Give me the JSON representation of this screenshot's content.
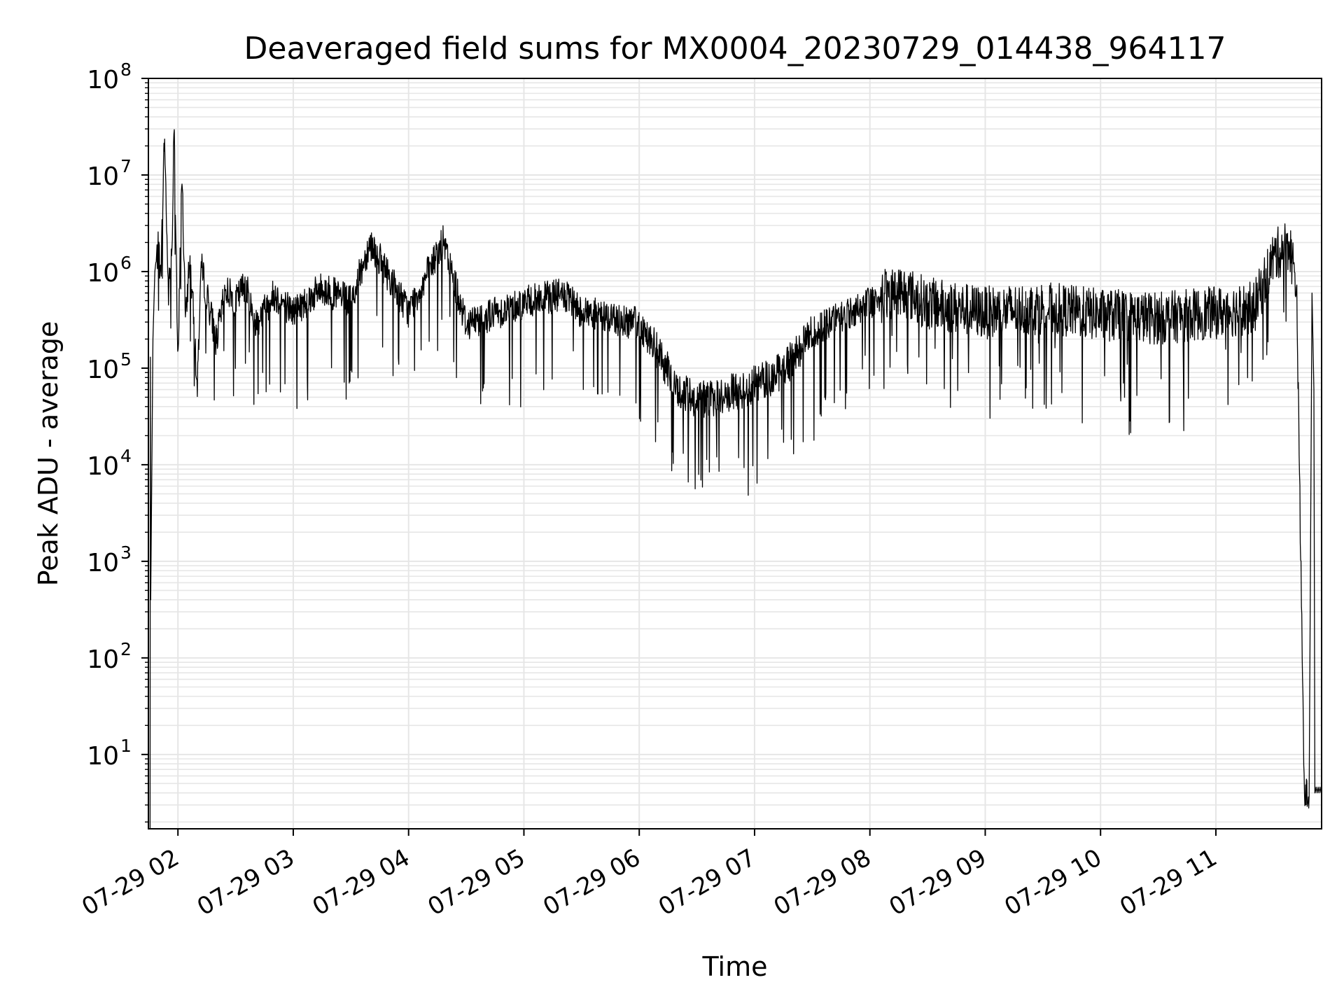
{
  "chart_data": {
    "type": "line",
    "title": "Deaveraged field sums for MX0004_20230729_014438_964117",
    "xlabel": "Time",
    "ylabel": "Peak ADU - average",
    "yscale": "log",
    "ylim": [
      1.7,
      100000000
    ],
    "xlim": [
      "2023-07-29 01:44:38",
      "2023-07-29 11:55:00"
    ],
    "x_tick_labels": [
      "07-29 02",
      "07-29 03",
      "07-29 04",
      "07-29 05",
      "07-29 06",
      "07-29 07",
      "07-29 08",
      "07-29 09",
      "07-29 10",
      "07-29 11"
    ],
    "x_tick_values": [
      "2023-07-29 02:00",
      "2023-07-29 03:00",
      "2023-07-29 04:00",
      "2023-07-29 05:00",
      "2023-07-29 06:00",
      "2023-07-29 07:00",
      "2023-07-29 08:00",
      "2023-07-29 09:00",
      "2023-07-29 10:00",
      "2023-07-29 11:00"
    ],
    "y_tick_values": [
      10,
      100,
      1000,
      10000,
      100000,
      1000000,
      10000000,
      100000000
    ],
    "y_tick_base": "10",
    "y_tick_exponents": [
      "1",
      "2",
      "3",
      "4",
      "5",
      "6",
      "7",
      "8"
    ],
    "grid": true,
    "line_color": "#000000",
    "grid_color": "#e6e6e6",
    "series": [
      {
        "x": [
          "2023-07-29 01:46",
          "2023-07-29 01:47",
          "2023-07-29 01:48",
          "2023-07-29 01:50",
          "2023-07-29 01:51",
          "2023-07-29 01:53",
          "2023-07-29 01:55",
          "2023-07-29 01:57",
          "2023-07-29 01:58",
          "2023-07-29 02:00",
          "2023-07-29 02:02",
          "2023-07-29 02:04",
          "2023-07-29 02:06",
          "2023-07-29 02:08",
          "2023-07-29 02:10",
          "2023-07-29 02:12",
          "2023-07-29 02:15",
          "2023-07-29 02:20",
          "2023-07-29 02:25",
          "2023-07-29 02:30",
          "2023-07-29 02:35",
          "2023-07-29 02:40",
          "2023-07-29 02:50",
          "2023-07-29 03:00",
          "2023-07-29 03:15",
          "2023-07-29 03:30",
          "2023-07-29 03:40",
          "2023-07-29 04:00",
          "2023-07-29 04:18",
          "2023-07-29 04:30",
          "2023-07-29 05:00",
          "2023-07-29 05:20",
          "2023-07-29 05:30",
          "2023-07-29 06:00",
          "2023-07-29 06:10",
          "2023-07-29 06:20",
          "2023-07-29 06:30",
          "2023-07-29 06:40",
          "2023-07-29 06:50",
          "2023-07-29 07:00",
          "2023-07-29 07:15",
          "2023-07-29 07:30",
          "2023-07-29 07:45",
          "2023-07-29 08:00",
          "2023-07-29 08:15",
          "2023-07-29 08:30",
          "2023-07-29 09:00",
          "2023-07-29 09:30",
          "2023-07-29 10:00",
          "2023-07-29 10:30",
          "2023-07-29 11:00",
          "2023-07-29 11:20",
          "2023-07-29 11:30",
          "2023-07-29 11:38",
          "2023-07-29 11:42",
          "2023-07-29 11:46",
          "2023-07-29 11:48",
          "2023-07-29 11:55"
        ],
        "y": [
          130000,
          400,
          1000000,
          2000000,
          800000,
          28000000,
          600000,
          1900000,
          50000000,
          90000,
          12000000,
          300000,
          1500000,
          400000,
          60000,
          1200000,
          600000,
          200000,
          700000,
          500000,
          800000,
          300000,
          600000,
          400000,
          700000,
          500000,
          2100000,
          400000,
          2100000,
          300000,
          500000,
          600000,
          400000,
          300000,
          150000,
          60000,
          50000,
          50000,
          60000,
          70000,
          100000,
          250000,
          350000,
          500000,
          700000,
          500000,
          400000,
          450000,
          380000,
          350000,
          400000,
          450000,
          1500000,
          2100000,
          800000,
          4,
          4,
          4
        ]
      }
    ]
  }
}
